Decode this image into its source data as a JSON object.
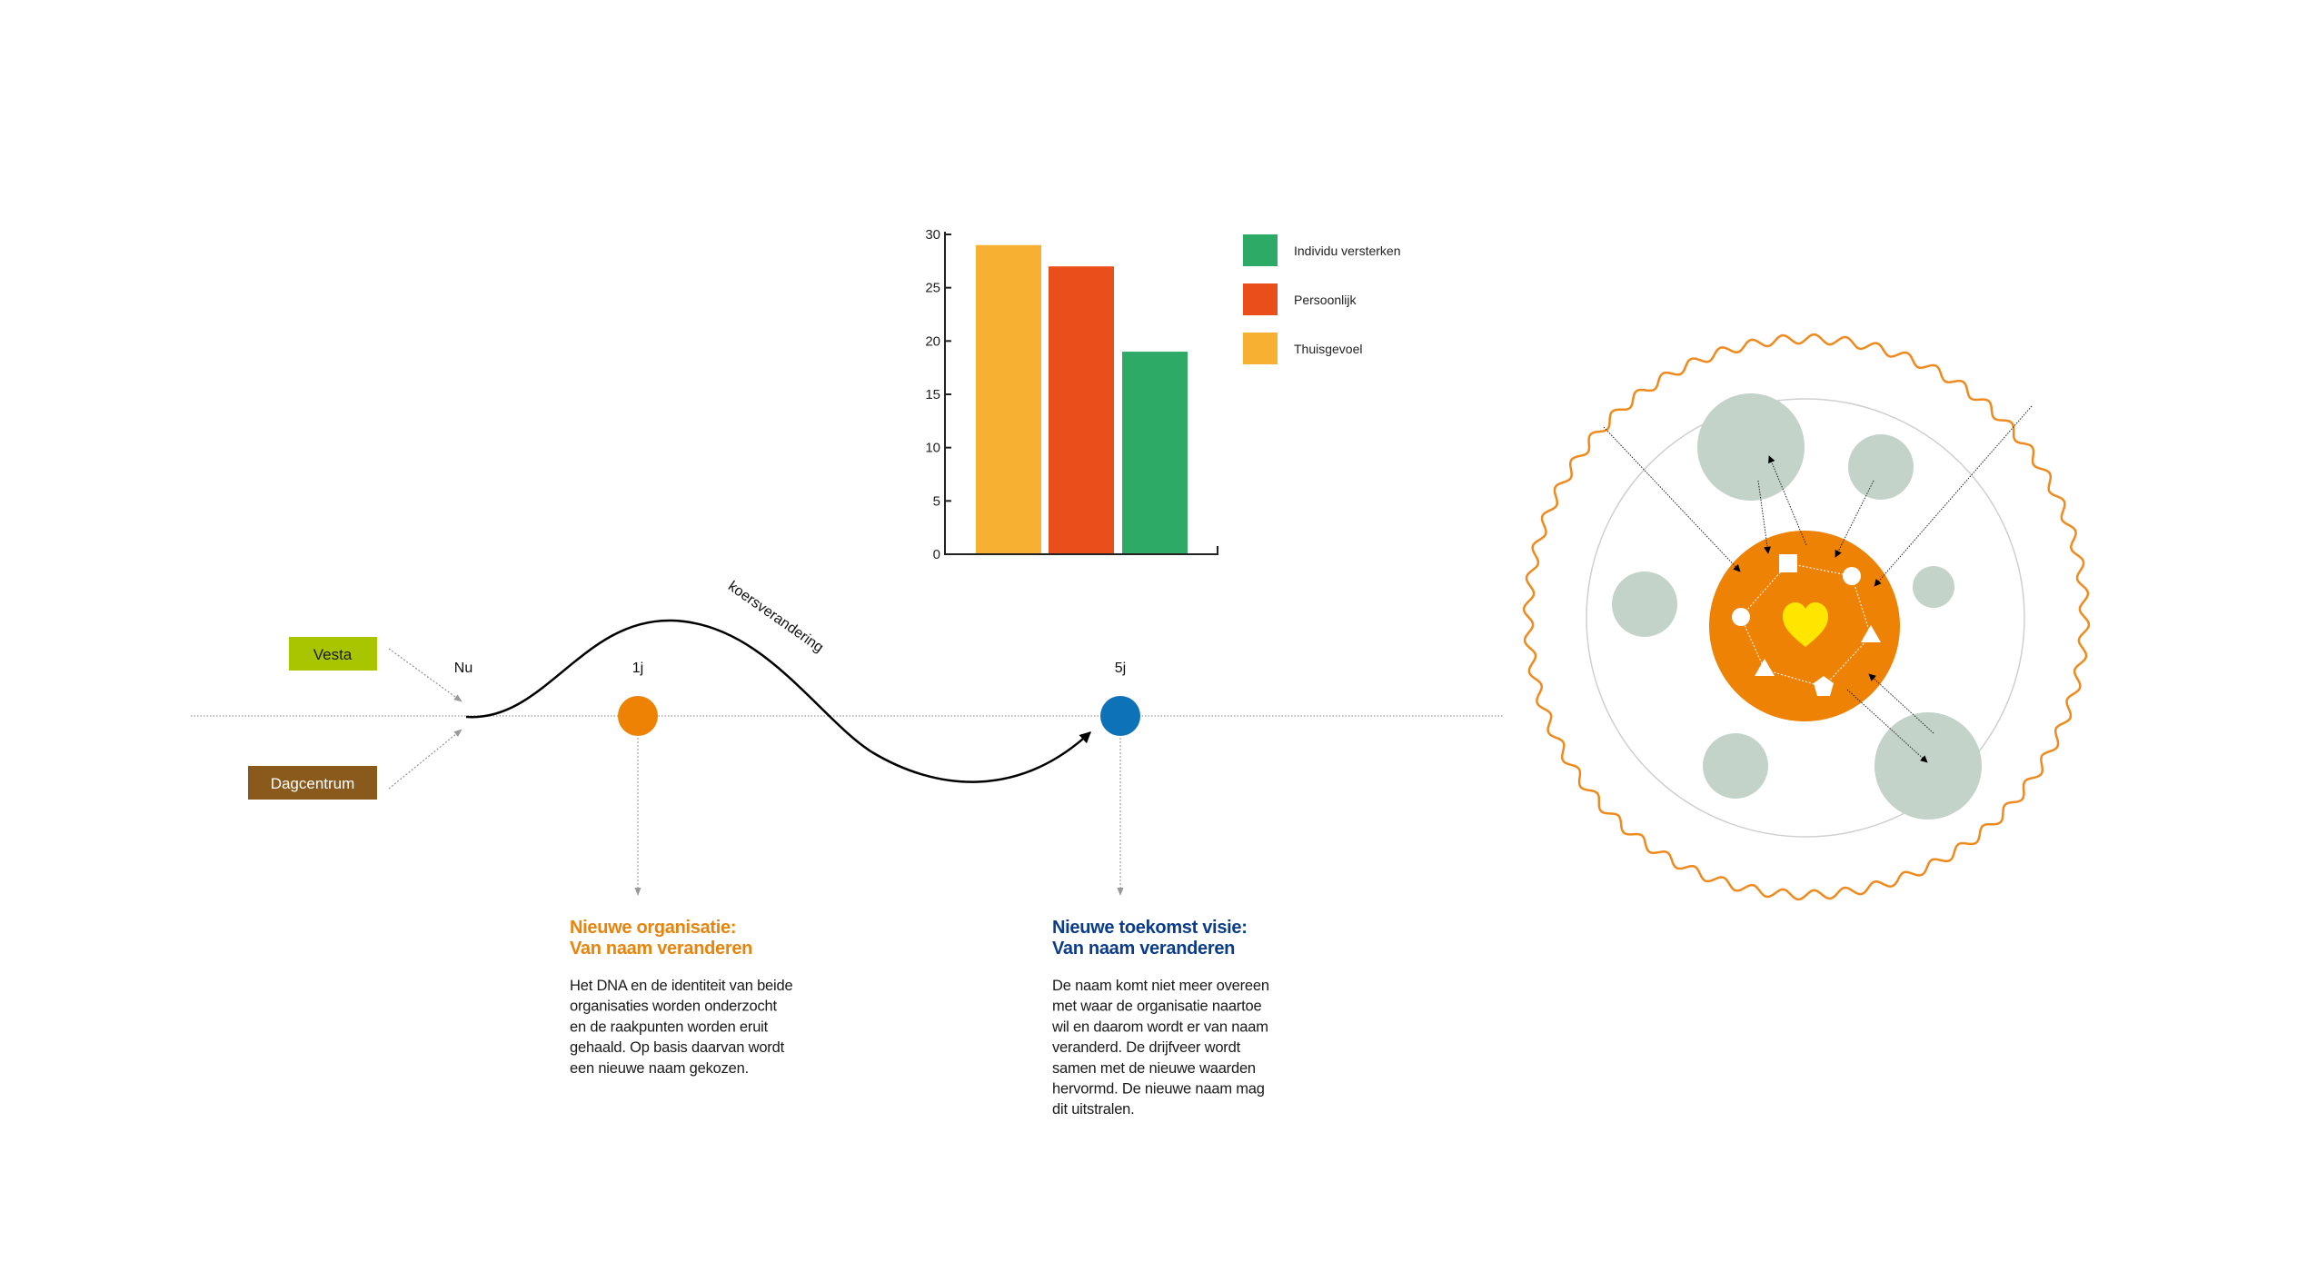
{
  "chart_data": {
    "type": "bar",
    "categories": [
      "Thuisgevoel",
      "Persoonlijk",
      "Individu versterken"
    ],
    "values": [
      29,
      27,
      19
    ],
    "colors": [
      "#F7B032",
      "#E94E1B",
      "#2EAA67"
    ],
    "ylim": [
      0,
      30
    ],
    "yticks": [
      0,
      5,
      10,
      15,
      20,
      25,
      30
    ],
    "legend": [
      {
        "label": "Individu versterken",
        "color": "#2EAA67"
      },
      {
        "label": "Persoonlijk",
        "color": "#E94E1B"
      },
      {
        "label": "Thuisgevoel",
        "color": "#F7B032"
      }
    ],
    "legend_placement": "right",
    "grid": false
  },
  "timeline": {
    "sources": [
      {
        "label": "Vesta",
        "color": "#A9C500",
        "text_color": "#1a1a1a"
      },
      {
        "label": "Dagcentrum",
        "color": "#8A5A1C",
        "text_color": "#ffffff"
      }
    ],
    "markers": [
      {
        "label": "Nu"
      },
      {
        "label": "1j",
        "color": "#EE8205"
      },
      {
        "label": "5j",
        "color": "#0E72B8"
      }
    ],
    "curve_label": "koersverandering"
  },
  "columns": [
    {
      "heading_line1": "Nieuwe organisatie:",
      "heading_line2": "Van naam veranderen",
      "color": "#E8830C",
      "body": [
        "Het DNA en de identiteit van beide",
        "organisaties worden onderzocht",
        "en de raakpunten worden eruit",
        "gehaald. Op basis daarvan wordt",
        "een nieuwe naam gekozen."
      ]
    },
    {
      "heading_line1": "Nieuwe toekomst visie:",
      "heading_line2": "Van naam veranderen",
      "color": "#0B3C8C",
      "body": [
        "De naam komt niet meer overeen",
        "met waar de organisatie naartoe",
        "wil en daarom wordt er van naam",
        "veranderd. De drijfveer wordt",
        "samen met de nieuwe waarden",
        "hervormd. De nieuwe naam mag",
        "dit uitstralen."
      ]
    }
  ],
  "circle_diagram": {
    "core_color": "#EE8205",
    "heart_color": "#FFE600",
    "satellite_color": "#C3D3CA",
    "wave_color": "#EE8A1E",
    "icons": [
      "heart-icon",
      "square-icon",
      "circle-icon",
      "triangle-icon",
      "pentagon-icon"
    ]
  }
}
